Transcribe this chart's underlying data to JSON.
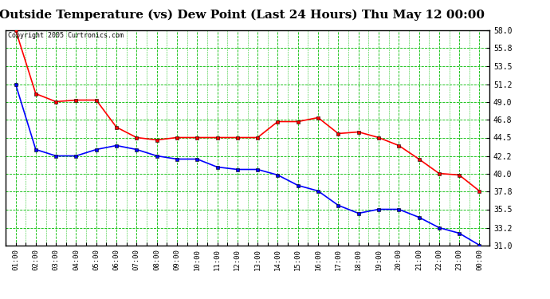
{
  "title": "Outside Temperature (vs) Dew Point (Last 24 Hours) Thu May 12 00:00",
  "copyright": "Copyright 2005 Curtronics.com",
  "x_labels": [
    "01:00",
    "02:00",
    "03:00",
    "04:00",
    "05:00",
    "06:00",
    "07:00",
    "08:00",
    "09:00",
    "10:00",
    "11:00",
    "12:00",
    "13:00",
    "14:00",
    "15:00",
    "16:00",
    "17:00",
    "18:00",
    "19:00",
    "20:00",
    "21:00",
    "22:00",
    "23:00",
    "00:00"
  ],
  "temp_data": [
    58.0,
    50.0,
    49.0,
    49.2,
    49.2,
    45.8,
    44.5,
    44.2,
    44.5,
    44.5,
    44.5,
    44.5,
    44.5,
    46.5,
    46.5,
    47.0,
    45.0,
    45.2,
    44.5,
    43.5,
    41.8,
    40.0,
    39.8,
    37.8
  ],
  "dew_data": [
    51.2,
    43.0,
    42.2,
    42.2,
    43.0,
    43.5,
    43.0,
    42.2,
    41.8,
    41.8,
    40.8,
    40.5,
    40.5,
    39.8,
    38.5,
    37.8,
    36.0,
    35.0,
    35.5,
    35.5,
    34.5,
    33.2,
    32.5,
    31.0
  ],
  "temp_color": "#ff0000",
  "dew_color": "#0000ff",
  "bg_color": "#ffffff",
  "plot_bg_color": "#ffffff",
  "grid_color": "#00bb00",
  "ylim": [
    31.0,
    58.0
  ],
  "yticks": [
    31.0,
    33.2,
    35.5,
    37.8,
    40.0,
    42.2,
    44.5,
    46.8,
    49.0,
    51.2,
    53.5,
    55.8,
    58.0
  ],
  "title_fontsize": 11,
  "marker": "s",
  "marker_size": 2.5,
  "line_width": 1.2
}
